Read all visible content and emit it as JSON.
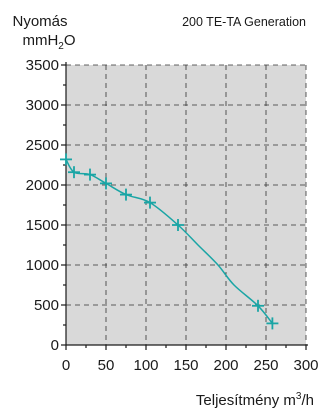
{
  "chart_data": {
    "type": "line",
    "title": "200 TE-TA Generation",
    "ylabel_line1": "Nyomás",
    "ylabel_line2": "mmH",
    "ylabel_sub": "2",
    "ylabel_line2_end": "O",
    "xlabel_main": "Teljesítmény m",
    "xlabel_sup": "3",
    "xlabel_end": "/h",
    "xlim": [
      0,
      300
    ],
    "ylim": [
      0,
      3500
    ],
    "x_ticks": [
      "0",
      "50",
      "100",
      "150",
      "200",
      "250",
      "300"
    ],
    "y_ticks": [
      "0",
      "500",
      "1000",
      "1500",
      "2000",
      "2500",
      "3000",
      "3500"
    ],
    "grid": true,
    "plot_background": "#d9d9d9",
    "line_color": "#1aa5a5",
    "series": [
      {
        "x": [
          0,
          10,
          30,
          50,
          75,
          105,
          140,
          240,
          258
        ],
        "y": [
          2320,
          2160,
          2130,
          2020,
          1880,
          1780,
          1500,
          490,
          270
        ]
      }
    ],
    "curve": {
      "x": [
        0,
        10,
        30,
        50,
        75,
        105,
        140,
        165,
        190,
        210,
        240,
        258
      ],
      "y": [
        2320,
        2160,
        2130,
        2020,
        1880,
        1780,
        1500,
        1250,
        1000,
        750,
        490,
        270
      ]
    }
  }
}
